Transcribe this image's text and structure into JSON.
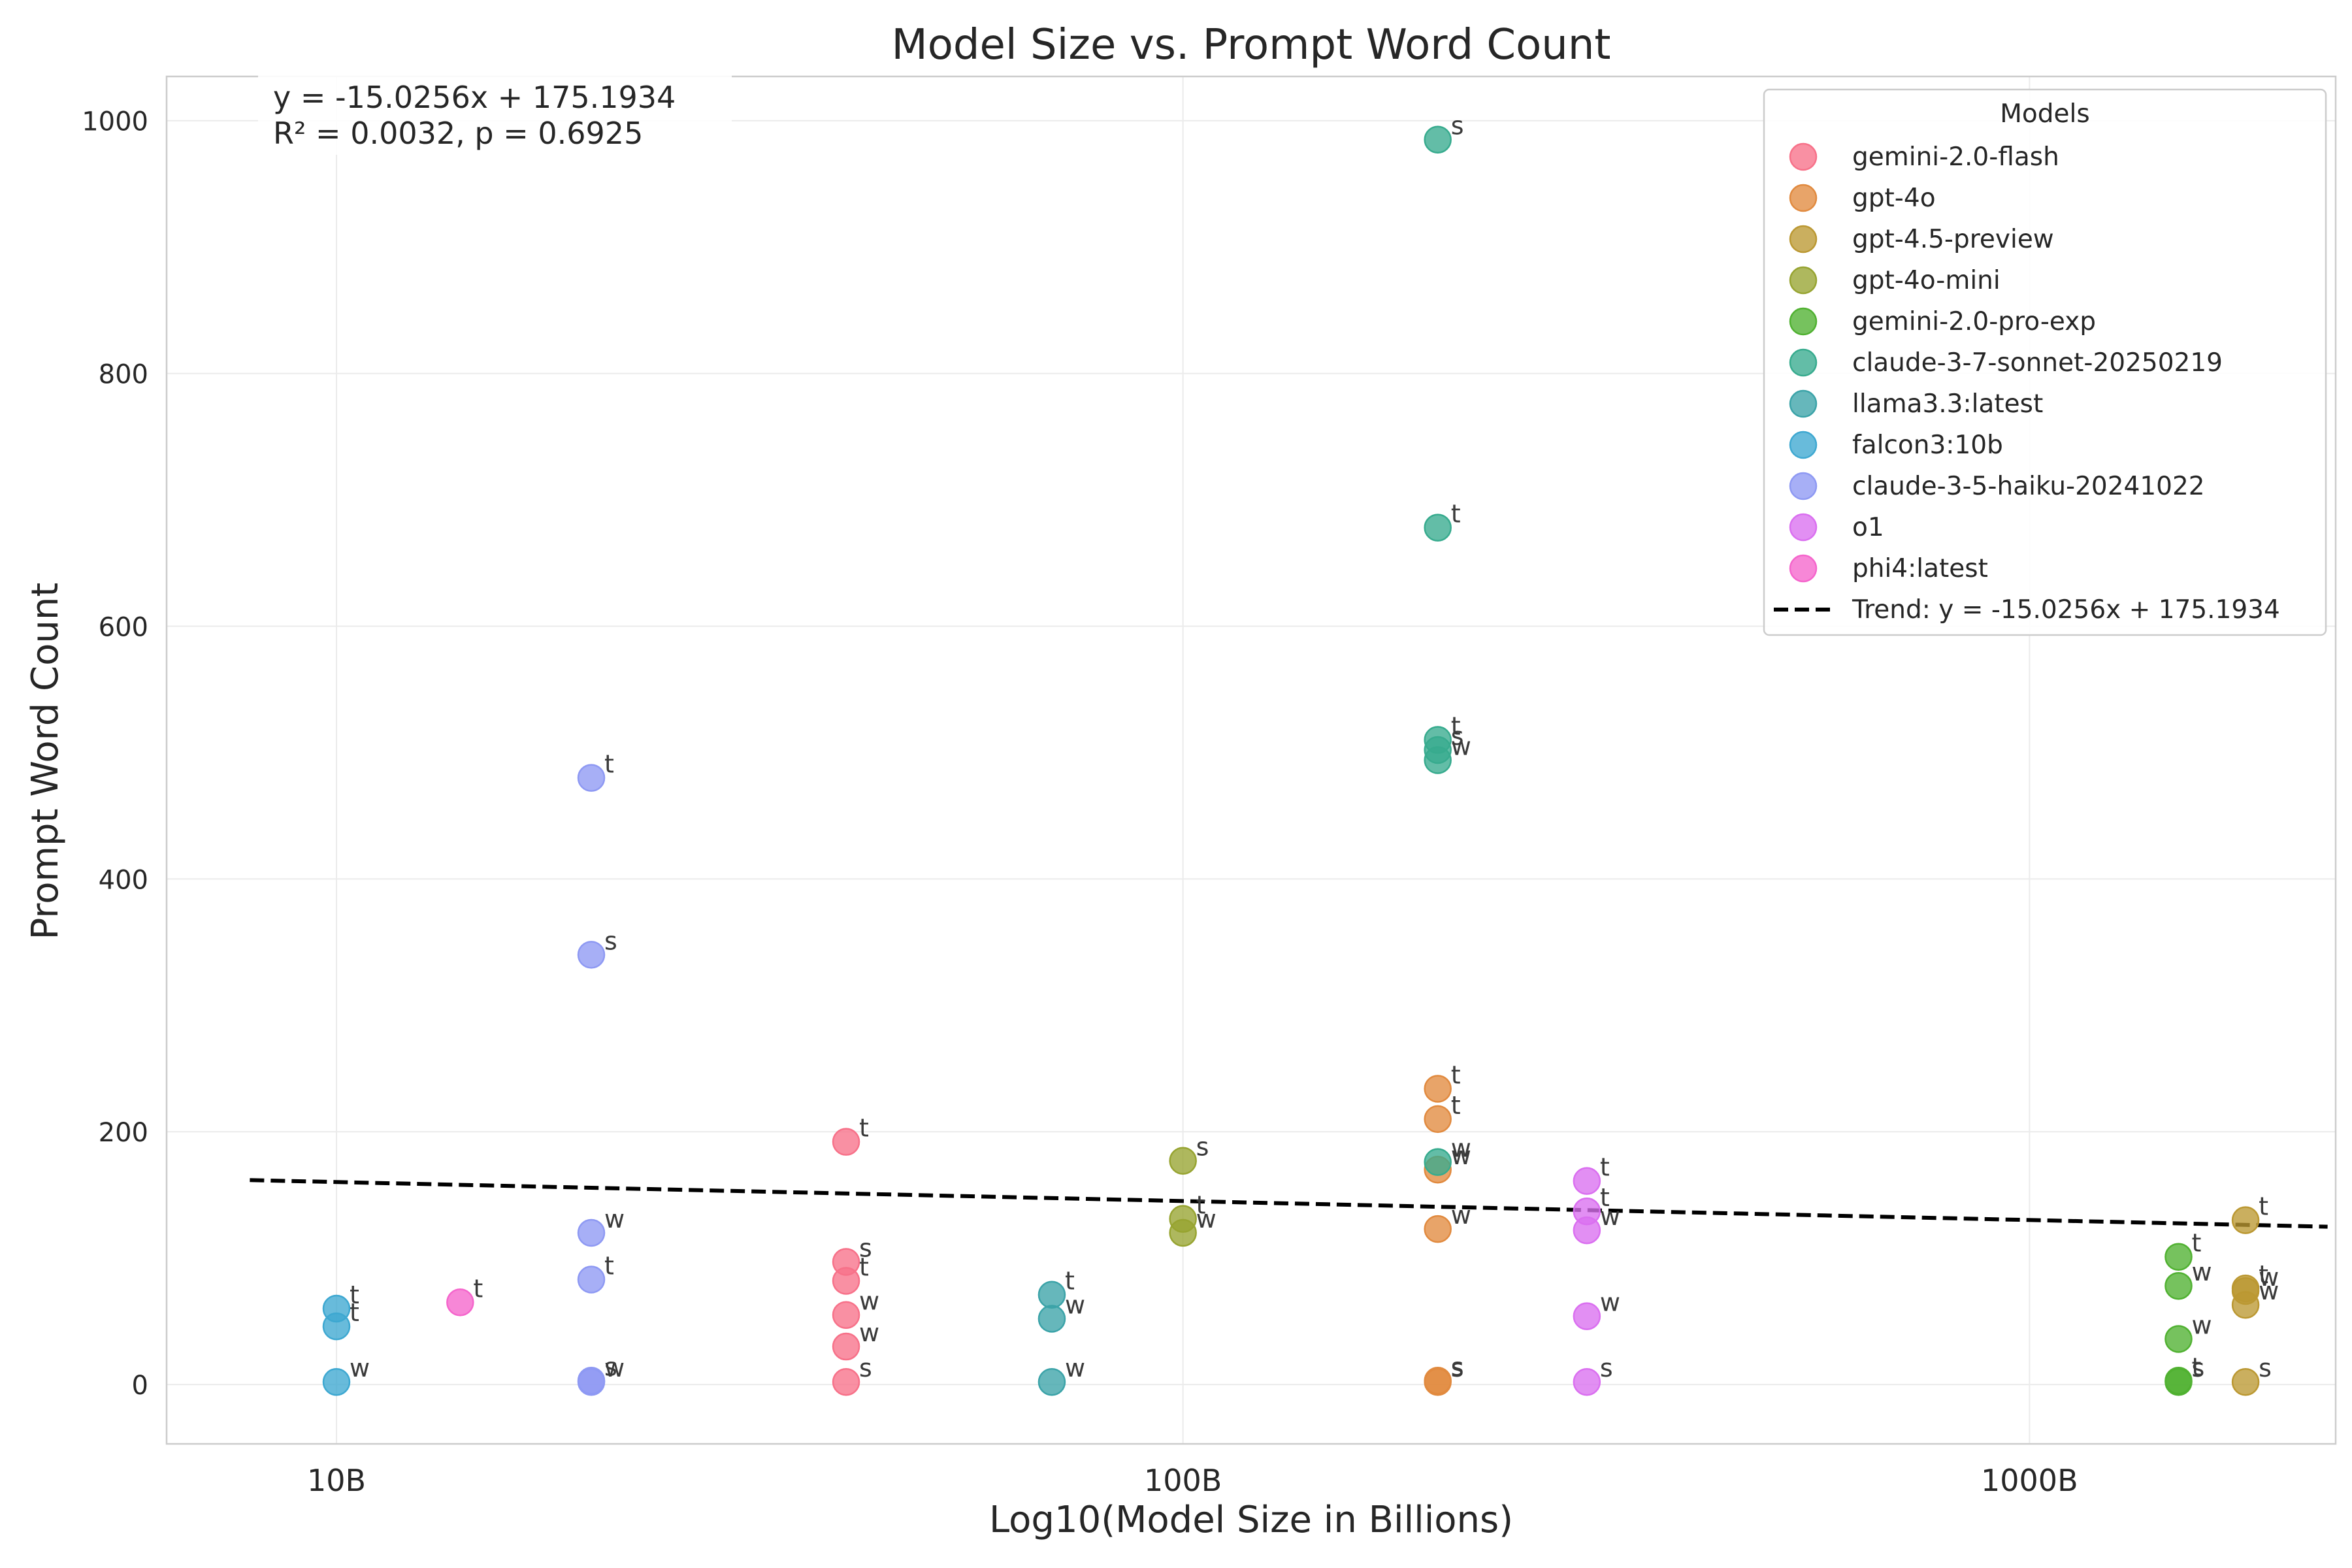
{
  "chart_data": {
    "type": "scatter",
    "title": "Model Size vs. Prompt Word Count",
    "xlabel": "Log10(Model Size in Billions)",
    "ylabel": "Prompt Word Count",
    "x_scale": "log",
    "xlim": [
      6.3,
      2300
    ],
    "ylim": [
      -47,
      1035
    ],
    "x_ticks": [
      {
        "value": 10,
        "label": "10B"
      },
      {
        "value": 100,
        "label": "100B"
      },
      {
        "value": 1000,
        "label": "1000B"
      }
    ],
    "y_ticks": [
      0,
      200,
      400,
      600,
      800,
      1000
    ],
    "grid": true,
    "legend": {
      "title": "Models",
      "placement": "top-right"
    },
    "stats_text": [
      "y = -15.0256x + 175.1934",
      "R² = 0.0032, p = 0.6925"
    ],
    "trend": {
      "label": "Trend: y = -15.0256x + 175.1934",
      "slope": -15.0256,
      "intercept": 175.1934,
      "x_range": [
        7.9,
        2250
      ],
      "color": "#000000",
      "style": "dashed"
    },
    "series": [
      {
        "name": "gemini-2.0-flash",
        "color": "#f77189",
        "points": [
          {
            "x": 40,
            "y": 192,
            "label": "t"
          },
          {
            "x": 40,
            "y": 97,
            "label": "s"
          },
          {
            "x": 40,
            "y": 82,
            "label": "t"
          },
          {
            "x": 40,
            "y": 55,
            "label": "w"
          },
          {
            "x": 40,
            "y": 30,
            "label": "w"
          },
          {
            "x": 40,
            "y": 2,
            "label": "s"
          }
        ]
      },
      {
        "name": "gpt-4o",
        "color": "#e18a3f",
        "points": [
          {
            "x": 200,
            "y": 234,
            "label": "t"
          },
          {
            "x": 200,
            "y": 210,
            "label": "t"
          },
          {
            "x": 200,
            "y": 170,
            "label": "w"
          },
          {
            "x": 200,
            "y": 123,
            "label": "w"
          },
          {
            "x": 200,
            "y": 3,
            "label": "s"
          },
          {
            "x": 200,
            "y": 2,
            "label": "s"
          }
        ]
      },
      {
        "name": "gpt-4.5-preview",
        "color": "#bb9832",
        "points": [
          {
            "x": 1800,
            "y": 130,
            "label": "t"
          },
          {
            "x": 1800,
            "y": 76,
            "label": "t"
          },
          {
            "x": 1800,
            "y": 74,
            "label": "w"
          },
          {
            "x": 1800,
            "y": 63,
            "label": "w"
          },
          {
            "x": 1800,
            "y": 2,
            "label": "s"
          }
        ]
      },
      {
        "name": "gpt-4o-mini",
        "color": "#97a431",
        "points": [
          {
            "x": 100,
            "y": 177,
            "label": "s"
          },
          {
            "x": 100,
            "y": 131,
            "label": "t"
          },
          {
            "x": 100,
            "y": 120,
            "label": "w"
          }
        ]
      },
      {
        "name": "gemini-2.0-pro-exp",
        "color": "#50b131",
        "points": [
          {
            "x": 1500,
            "y": 101,
            "label": "t"
          },
          {
            "x": 1500,
            "y": 78,
            "label": "w"
          },
          {
            "x": 1500,
            "y": 36,
            "label": "w"
          },
          {
            "x": 1500,
            "y": 3,
            "label": "t"
          },
          {
            "x": 1500,
            "y": 2,
            "label": "s"
          }
        ]
      },
      {
        "name": "claude-3-7-sonnet-20250219",
        "color": "#37ab8e",
        "points": [
          {
            "x": 200,
            "y": 985,
            "label": "s"
          },
          {
            "x": 200,
            "y": 678,
            "label": "t"
          },
          {
            "x": 200,
            "y": 510,
            "label": "t"
          },
          {
            "x": 200,
            "y": 502,
            "label": "s"
          },
          {
            "x": 200,
            "y": 494,
            "label": "w"
          },
          {
            "x": 200,
            "y": 176,
            "label": "w"
          }
        ]
      },
      {
        "name": "llama3.3:latest",
        "color": "#3ba3a8",
        "points": [
          {
            "x": 70,
            "y": 71,
            "label": "t"
          },
          {
            "x": 70,
            "y": 52,
            "label": "w"
          },
          {
            "x": 70,
            "y": 2,
            "label": "w"
          }
        ]
      },
      {
        "name": "falcon3:10b",
        "color": "#3ea8d1",
        "points": [
          {
            "x": 10,
            "y": 60,
            "label": "t"
          },
          {
            "x": 10,
            "y": 46,
            "label": "t"
          },
          {
            "x": 10,
            "y": 2,
            "label": "w"
          }
        ]
      },
      {
        "name": "claude-3-5-haiku-20241022",
        "color": "#8e99f3",
        "points": [
          {
            "x": 20,
            "y": 480,
            "label": "t"
          },
          {
            "x": 20,
            "y": 340,
            "label": "s"
          },
          {
            "x": 20,
            "y": 120,
            "label": "w"
          },
          {
            "x": 20,
            "y": 83,
            "label": "t"
          },
          {
            "x": 20,
            "y": 3,
            "label": "s"
          },
          {
            "x": 20,
            "y": 2,
            "label": "w"
          }
        ]
      },
      {
        "name": "o1",
        "color": "#da6ff0",
        "points": [
          {
            "x": 300,
            "y": 161,
            "label": "t"
          },
          {
            "x": 300,
            "y": 137,
            "label": "t"
          },
          {
            "x": 300,
            "y": 122,
            "label": "w"
          },
          {
            "x": 300,
            "y": 54,
            "label": "w"
          },
          {
            "x": 300,
            "y": 2,
            "label": "s"
          }
        ]
      },
      {
        "name": "phi4:latest",
        "color": "#f565cc",
        "points": [
          {
            "x": 14,
            "y": 65,
            "label": "t"
          }
        ]
      }
    ]
  }
}
